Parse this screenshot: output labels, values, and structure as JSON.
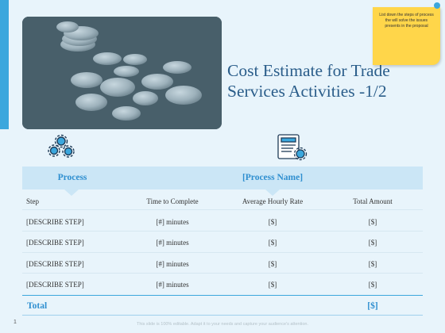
{
  "title": "Cost Estimate for Trade Services Activities -1/2",
  "sticky_note": "List down the steps of process the will solve the issues presents in the proposal",
  "table": {
    "process_label": "Process",
    "process_name_label": "[Process Name]",
    "columns": [
      "Step",
      "Time to Complete",
      "Average Hourly Rate",
      "Total Amount"
    ],
    "rows": [
      [
        "[DESCRIBE STEP]",
        "[#] minutes",
        "[$]",
        "[$]"
      ],
      [
        "[DESCRIBE STEP]",
        "[#] minutes",
        "[$]",
        "[$]"
      ],
      [
        "[DESCRIBE STEP]",
        "[#] minutes",
        "[$]",
        "[$]"
      ],
      [
        "[DESCRIBE STEP]",
        "[#] minutes",
        "[$]",
        "[$]"
      ]
    ],
    "total_label": "Total",
    "total_value": "[$]"
  },
  "footer": "This slide is 100% editable. Adapt it to your needs and capture your audience's attention.",
  "page_number": "1",
  "icons": [
    "gears-icon",
    "process-document-icon"
  ],
  "colors": {
    "accent": "#3ba7dd",
    "title": "#2a5d8a",
    "header_band": "#cbe6f6",
    "sticky": "#ffd64a"
  }
}
